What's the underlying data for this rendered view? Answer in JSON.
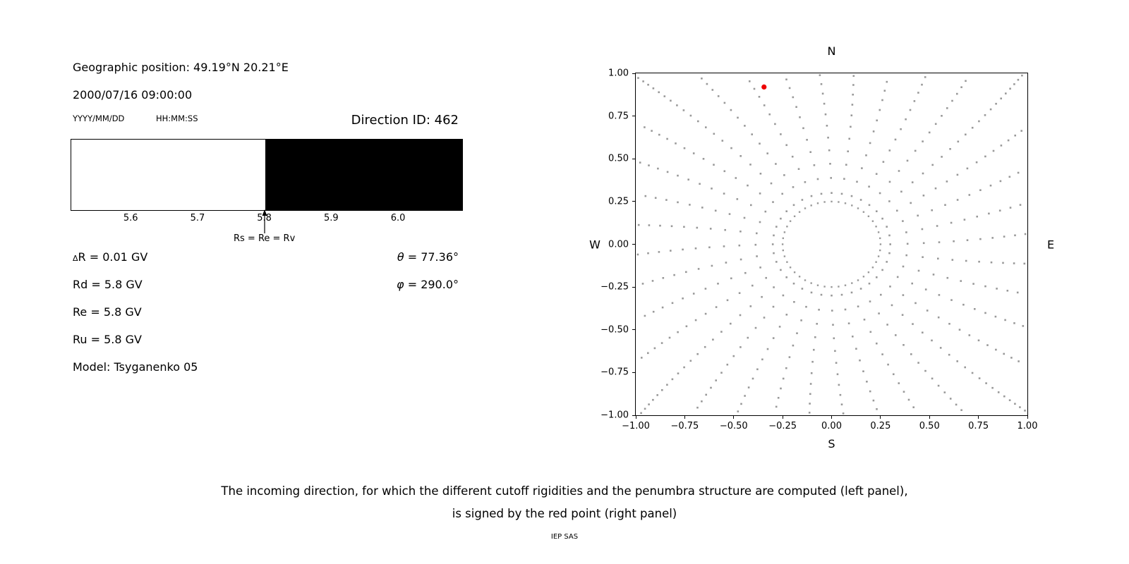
{
  "left": {
    "geo_position": "Geographic position: 49.19°N 20.21°E",
    "datetime": "2000/07/16 09:00:00",
    "date_format": "YYYY/MM/DD",
    "time_format": "HH:MM:SS",
    "direction_id": "Direction ID: 462",
    "delta_row": {
      "symbol": "Δ",
      "text": "R = 0.01 GV"
    },
    "params": [
      "Rd = 5.8 GV",
      "Re = 5.8 GV",
      "Ru = 5.8 GV"
    ],
    "model": "Model: Tsyganenko 05",
    "theta": {
      "symbol": "θ",
      "text": " = 77.36°"
    },
    "phi": {
      "symbol": "φ",
      "text": " = 290.0°"
    }
  },
  "caption": {
    "line1": "The incoming direction, for which the different cutoff rigidities and the penumbra structure are computed (left panel),",
    "line2": "is signed by the red point (right panel)",
    "credit": "IEP SAS"
  },
  "chart_data": [
    {
      "type": "bar",
      "name": "penumbra-band",
      "xlim": [
        5.51,
        6.095
      ],
      "x_ticks": [
        5.6,
        5.7,
        5.8,
        5.9,
        6.0
      ],
      "regions": [
        {
          "from": 5.51,
          "to": 5.8,
          "color": "#ffffff"
        },
        {
          "from": 5.8,
          "to": 6.095,
          "color": "#000000"
        }
      ],
      "marker": {
        "value": 5.8,
        "label": "Rs = Re = Rv"
      }
    },
    {
      "type": "scatter",
      "name": "asymptotic-direction-map",
      "xlim": [
        -1.0,
        1.0
      ],
      "ylim": [
        -1.0,
        1.0
      ],
      "x_ticks": [
        {
          "v": -1.0,
          "label": "−1.00"
        },
        {
          "v": -0.75,
          "label": "−0.75"
        },
        {
          "v": -0.5,
          "label": "−0.50"
        },
        {
          "v": -0.25,
          "label": "−0.25"
        },
        {
          "v": 0.0,
          "label": "0.00"
        },
        {
          "v": 0.25,
          "label": "0.25"
        },
        {
          "v": 0.5,
          "label": "0.50"
        },
        {
          "v": 0.75,
          "label": "0.75"
        },
        {
          "v": 1.0,
          "label": "1.00"
        }
      ],
      "y_ticks": [
        {
          "v": 1.0,
          "label": "1.00"
        },
        {
          "v": 0.75,
          "label": "0.75"
        },
        {
          "v": 0.5,
          "label": "0.50"
        },
        {
          "v": 0.25,
          "label": "0.25"
        },
        {
          "v": 0.0,
          "label": "0.00"
        },
        {
          "v": -0.25,
          "label": "−0.25"
        },
        {
          "v": -0.5,
          "label": "−0.50"
        },
        {
          "v": -0.75,
          "label": "−0.75"
        },
        {
          "v": -1.0,
          "label": "−1.00"
        }
      ],
      "compass": {
        "top": "N",
        "bottom": "S",
        "left": "W",
        "right": "E"
      },
      "dot_color": "#999999",
      "highlight_point": {
        "x": -0.345,
        "y": 0.92,
        "color": "#ee0000"
      },
      "pattern": {
        "kind": "radial-spokes",
        "spoke_count": 36,
        "spoke_angle_step_deg": 10,
        "r_start": 0.3,
        "r_end": 1.55,
        "curvature_deg": 5,
        "inner_ring_radius": 0.25,
        "inner_ring_points": 44
      }
    }
  ]
}
